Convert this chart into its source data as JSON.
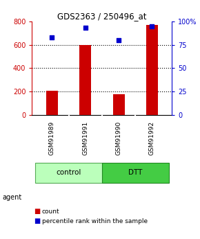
{
  "title": "GDS2363 / 250496_at",
  "samples": [
    "GSM91989",
    "GSM91991",
    "GSM91990",
    "GSM91992"
  ],
  "counts": [
    205,
    600,
    175,
    770
  ],
  "percentiles": [
    83,
    93,
    80,
    95
  ],
  "group_labels": [
    "control",
    "DTT"
  ],
  "bar_color": "#cc0000",
  "dot_color": "#0000cc",
  "left_ylim": [
    0,
    800
  ],
  "left_yticks": [
    0,
    200,
    400,
    600,
    800
  ],
  "right_ylim": [
    0,
    100
  ],
  "right_yticks": [
    0,
    25,
    50,
    75,
    100
  ],
  "right_yticklabels": [
    "0",
    "25",
    "50",
    "75",
    "100%"
  ],
  "bar_width": 0.35,
  "background_color": "#ffffff",
  "ctrl_color": "#bbffbb",
  "dtt_color": "#44cc44",
  "sample_box_color": "#cccccc",
  "left_tick_color": "#cc0000",
  "right_tick_color": "#0000cc"
}
